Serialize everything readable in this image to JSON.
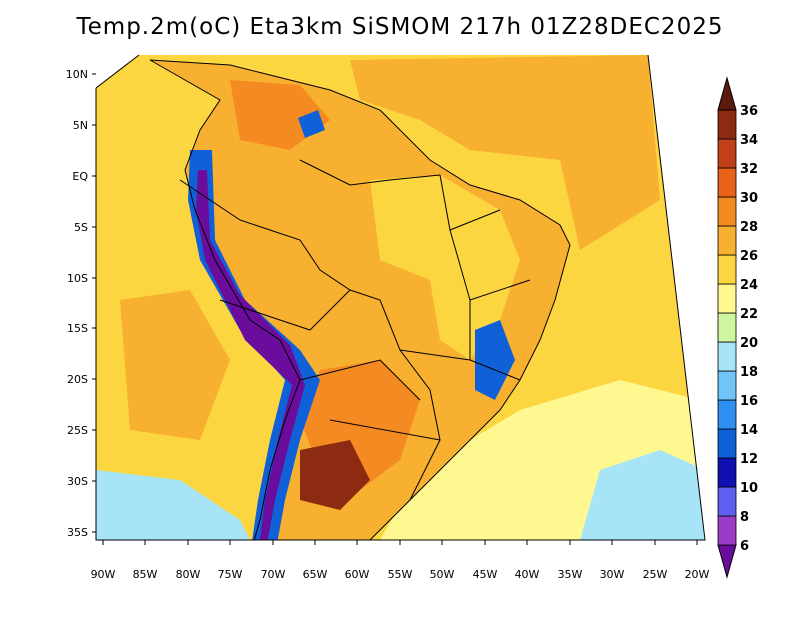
{
  "title": "Temp.2m(oC) Eta3km SiSMOM 217h 01Z28DEC2025",
  "lat_labels": [
    "10N",
    "5N",
    "EQ",
    "5S",
    "10S",
    "15S",
    "20S",
    "25S",
    "30S",
    "35S"
  ],
  "lon_labels": [
    "90W",
    "85W",
    "80W",
    "75W",
    "70W",
    "65W",
    "60W",
    "55W",
    "50W",
    "45W",
    "40W",
    "35W",
    "30W",
    "25W",
    "20W"
  ],
  "colorbar": {
    "labels": [
      "6",
      "8",
      "10",
      "12",
      "14",
      "16",
      "18",
      "20",
      "22",
      "24",
      "26",
      "28",
      "30",
      "32",
      "34",
      "36"
    ],
    "colors": [
      "#6a0d9c",
      "#9b3cc8",
      "#6060f0",
      "#1010b0",
      "#1060d8",
      "#2f8ff0",
      "#6fc4f8",
      "#a8e4f8",
      "#d0f5a0",
      "#fff790",
      "#fcd641",
      "#f8b030",
      "#f48a22",
      "#e8621a",
      "#c0401a",
      "#8c2a12",
      "#5a1a0e"
    ]
  },
  "palette": {
    "ocean": "#fcd641",
    "ocean_warm": "#f8b030",
    "south_ocean": "#fff790",
    "cold_ocean": "#a8e4f8",
    "land": "#f8b030",
    "land_hot": "#f48a22",
    "land_mild": "#fcd641",
    "andes": "#1060d8",
    "andes_core": "#6a0d9c",
    "hot_core": "#8c2a12"
  }
}
